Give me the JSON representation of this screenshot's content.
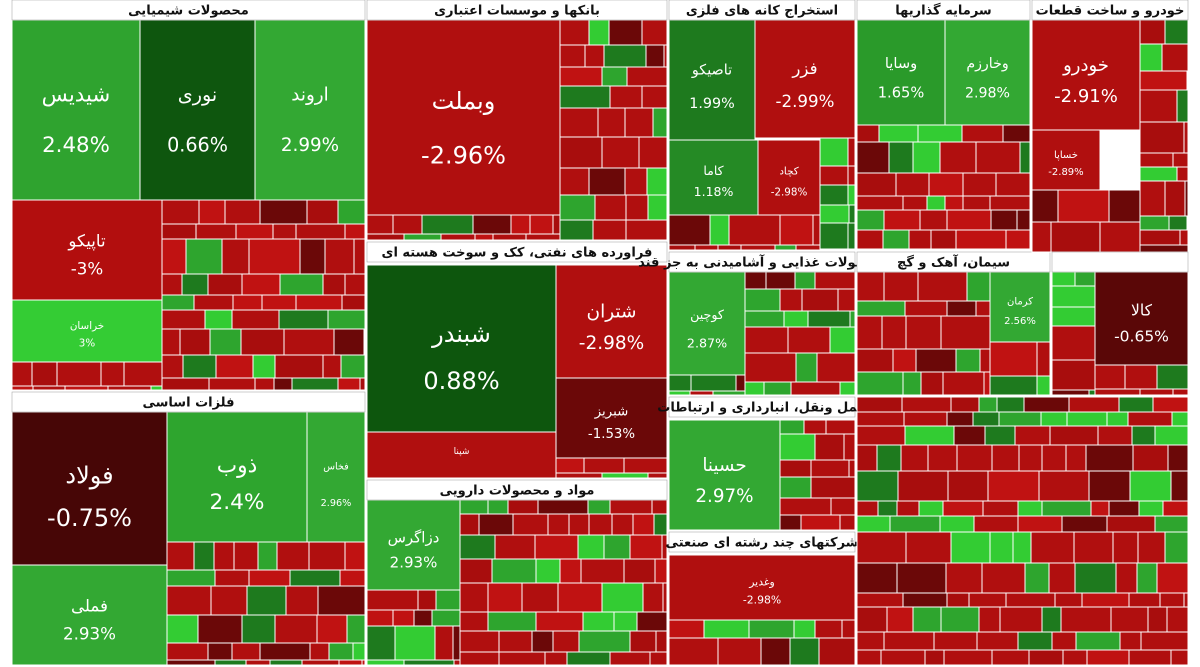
{
  "sectors": [
    {
      "title": "محصولات شیمیایی",
      "tiles": [
        {
          "label": "شیدیس",
          "change": "2.48%",
          "color": "#2fa32f"
        },
        {
          "label": "نوری",
          "change": "0.66%",
          "color": "#0e560e"
        },
        {
          "label": "اروند",
          "change": "2.99%",
          "color": "#33a833"
        },
        {
          "label": "تاپیکو",
          "change": "-3%",
          "color": "#b20e0e"
        },
        {
          "label": "خراسان",
          "change": "3%",
          "color": "#34cc34"
        }
      ]
    },
    {
      "title": "فلزات اساسی",
      "tiles": [
        {
          "label": "فولاد",
          "change": "-0.75%",
          "color": "#470606"
        },
        {
          "label": "ذوب",
          "change": "2.4%",
          "color": "#2ea52e"
        },
        {
          "label": "فخاس",
          "change": "2.96%",
          "color": "#33a833"
        },
        {
          "label": "فملی",
          "change": "2.93%",
          "color": "#33a833"
        }
      ]
    },
    {
      "title": "بانکها و موسسات اعتباری",
      "tiles": [
        {
          "label": "وبملت",
          "change": "-2.96%",
          "color": "#b00f0f"
        }
      ]
    },
    {
      "title": "فراورده های نفتی، کک و سوخت هسته ای",
      "tiles": [
        {
          "label": "شبندر",
          "change": "0.88%",
          "color": "#0d560d"
        },
        {
          "label": "شتران",
          "change": "-2.98%",
          "color": "#b00f0f"
        },
        {
          "label": "شبریز",
          "change": "-1.53%",
          "color": "#6b0808"
        },
        {
          "label": "شپنا",
          "change": "",
          "color": "#b00f0f"
        }
      ]
    },
    {
      "title": "مواد و محصولات دارویی",
      "tiles": [
        {
          "label": "دزاگرس",
          "change": "2.93%",
          "color": "#33a833"
        }
      ]
    },
    {
      "title": "استخراج کانه های فلزی",
      "tiles": [
        {
          "label": "تاصیکو",
          "change": "1.99%",
          "color": "#1e7a1e"
        },
        {
          "label": "فزر",
          "change": "-2.99%",
          "color": "#b00f0f"
        },
        {
          "label": "کاما",
          "change": "1.18%",
          "color": "#258a25"
        },
        {
          "label": "کچاد",
          "change": "-2.98%",
          "color": "#b00f0f"
        }
      ]
    },
    {
      "title": "محصولات غذایی و آشامیدنی به جز قند",
      "tiles": [
        {
          "label": "کوچین",
          "change": "2.87%",
          "color": "#33a833"
        }
      ]
    },
    {
      "title": "حمل ونقل، انبارداری و ارتباطات",
      "tiles": [
        {
          "label": "حسینا",
          "change": "2.97%",
          "color": "#33a833"
        }
      ]
    },
    {
      "title": "شرکتهای چند رشته ای صنعتی",
      "tiles": [
        {
          "label": "وغدیر",
          "change": "-2.98%",
          "color": "#b00f0f"
        }
      ]
    },
    {
      "title": "سرمایه گذاریها",
      "tiles": [
        {
          "label": "وسایا",
          "change": "1.65%",
          "color": "#2a9a2a"
        },
        {
          "label": "وخارزم",
          "change": "2.98%",
          "color": "#33a833"
        }
      ]
    },
    {
      "title": "سیمان، آهک و گچ",
      "tiles": [
        {
          "label": "کرمان",
          "change": "2.56%",
          "color": "#33a833"
        }
      ]
    },
    {
      "title": "خودرو و ساخت قطعات",
      "tiles": [
        {
          "label": "خودرو",
          "change": "-2.91%",
          "color": "#b00f0f"
        },
        {
          "label": "خساپا",
          "change": "-2.89%",
          "color": "#b00f0f"
        }
      ]
    },
    {
      "title": "",
      "tiles": [
        {
          "label": "کالا",
          "change": "-0.65%",
          "color": "#5a0707"
        }
      ]
    }
  ]
}
